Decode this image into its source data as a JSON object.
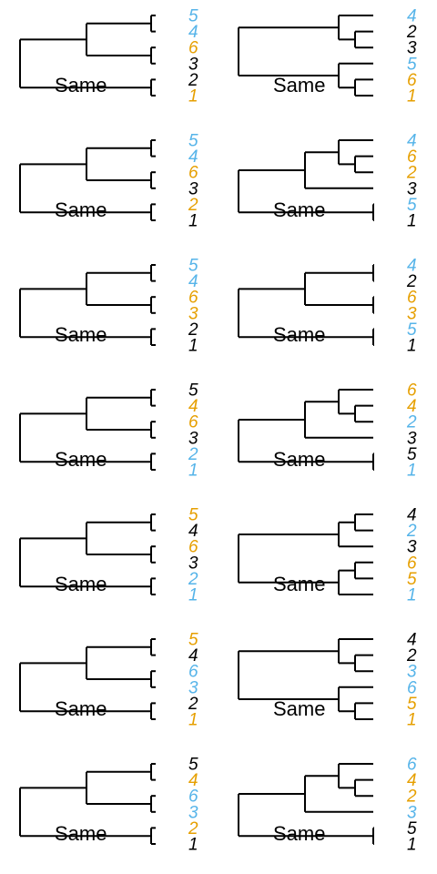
{
  "colors": {
    "black": "#000000",
    "blue": "#56B4E9",
    "orange": "#E69F00"
  },
  "panels": [
    {
      "label": "Same",
      "topology": "A",
      "tips": [
        {
          "text": "5",
          "color": "blue"
        },
        {
          "text": "4",
          "color": "blue"
        },
        {
          "text": "6",
          "color": "orange"
        },
        {
          "text": "3",
          "color": "black"
        },
        {
          "text": "2",
          "color": "black"
        },
        {
          "text": "1",
          "color": "orange"
        }
      ]
    },
    {
      "label": "Same",
      "topology": "B",
      "tips": [
        {
          "text": "4",
          "color": "blue"
        },
        {
          "text": "2",
          "color": "black"
        },
        {
          "text": "3",
          "color": "black"
        },
        {
          "text": "5",
          "color": "blue"
        },
        {
          "text": "6",
          "color": "orange"
        },
        {
          "text": "1",
          "color": "orange"
        }
      ]
    },
    {
      "label": "Same",
      "topology": "A",
      "tips": [
        {
          "text": "5",
          "color": "blue"
        },
        {
          "text": "4",
          "color": "blue"
        },
        {
          "text": "6",
          "color": "orange"
        },
        {
          "text": "3",
          "color": "black"
        },
        {
          "text": "2",
          "color": "orange"
        },
        {
          "text": "1",
          "color": "black"
        }
      ]
    },
    {
      "label": "Same",
      "topology": "C",
      "tips": [
        {
          "text": "4",
          "color": "blue"
        },
        {
          "text": "6",
          "color": "orange"
        },
        {
          "text": "2",
          "color": "orange"
        },
        {
          "text": "3",
          "color": "black"
        },
        {
          "text": "5",
          "color": "blue"
        },
        {
          "text": "1",
          "color": "black"
        }
      ]
    },
    {
      "label": "Same",
      "topology": "A",
      "tips": [
        {
          "text": "5",
          "color": "blue"
        },
        {
          "text": "4",
          "color": "blue"
        },
        {
          "text": "6",
          "color": "orange"
        },
        {
          "text": "3",
          "color": "orange"
        },
        {
          "text": "2",
          "color": "black"
        },
        {
          "text": "1",
          "color": "black"
        }
      ]
    },
    {
      "label": "Same",
      "topology": "D",
      "tips": [
        {
          "text": "4",
          "color": "blue"
        },
        {
          "text": "2",
          "color": "black"
        },
        {
          "text": "6",
          "color": "orange"
        },
        {
          "text": "3",
          "color": "orange"
        },
        {
          "text": "5",
          "color": "blue"
        },
        {
          "text": "1",
          "color": "black"
        }
      ]
    },
    {
      "label": "Same",
      "topology": "A",
      "tips": [
        {
          "text": "5",
          "color": "black"
        },
        {
          "text": "4",
          "color": "orange"
        },
        {
          "text": "6",
          "color": "orange"
        },
        {
          "text": "3",
          "color": "black"
        },
        {
          "text": "2",
          "color": "blue"
        },
        {
          "text": "1",
          "color": "blue"
        }
      ]
    },
    {
      "label": "Same",
      "topology": "C",
      "tips": [
        {
          "text": "6",
          "color": "orange"
        },
        {
          "text": "4",
          "color": "orange"
        },
        {
          "text": "2",
          "color": "blue"
        },
        {
          "text": "3",
          "color": "black"
        },
        {
          "text": "5",
          "color": "black"
        },
        {
          "text": "1",
          "color": "blue"
        }
      ]
    },
    {
      "label": "Same",
      "topology": "A",
      "tips": [
        {
          "text": "5",
          "color": "orange"
        },
        {
          "text": "4",
          "color": "black"
        },
        {
          "text": "6",
          "color": "orange"
        },
        {
          "text": "3",
          "color": "black"
        },
        {
          "text": "2",
          "color": "blue"
        },
        {
          "text": "1",
          "color": "blue"
        }
      ]
    },
    {
      "label": "Same",
      "topology": "E",
      "tips": [
        {
          "text": "4",
          "color": "black"
        },
        {
          "text": "2",
          "color": "blue"
        },
        {
          "text": "3",
          "color": "black"
        },
        {
          "text": "6",
          "color": "orange"
        },
        {
          "text": "5",
          "color": "orange"
        },
        {
          "text": "1",
          "color": "blue"
        }
      ]
    },
    {
      "label": "Same",
      "topology": "A",
      "tips": [
        {
          "text": "5",
          "color": "orange"
        },
        {
          "text": "4",
          "color": "black"
        },
        {
          "text": "6",
          "color": "blue"
        },
        {
          "text": "3",
          "color": "blue"
        },
        {
          "text": "2",
          "color": "black"
        },
        {
          "text": "1",
          "color": "orange"
        }
      ]
    },
    {
      "label": "Same",
      "topology": "B",
      "tips": [
        {
          "text": "4",
          "color": "black"
        },
        {
          "text": "2",
          "color": "black"
        },
        {
          "text": "3",
          "color": "blue"
        },
        {
          "text": "6",
          "color": "blue"
        },
        {
          "text": "5",
          "color": "orange"
        },
        {
          "text": "1",
          "color": "orange"
        }
      ]
    },
    {
      "label": "Same",
      "topology": "A",
      "tips": [
        {
          "text": "5",
          "color": "black"
        },
        {
          "text": "4",
          "color": "orange"
        },
        {
          "text": "6",
          "color": "blue"
        },
        {
          "text": "3",
          "color": "blue"
        },
        {
          "text": "2",
          "color": "orange"
        },
        {
          "text": "1",
          "color": "black"
        }
      ]
    },
    {
      "label": "Same",
      "topology": "C",
      "tips": [
        {
          "text": "6",
          "color": "blue"
        },
        {
          "text": "4",
          "color": "orange"
        },
        {
          "text": "2",
          "color": "orange"
        },
        {
          "text": "3",
          "color": "blue"
        },
        {
          "text": "5",
          "color": "black"
        },
        {
          "text": "1",
          "color": "black"
        }
      ]
    }
  ]
}
